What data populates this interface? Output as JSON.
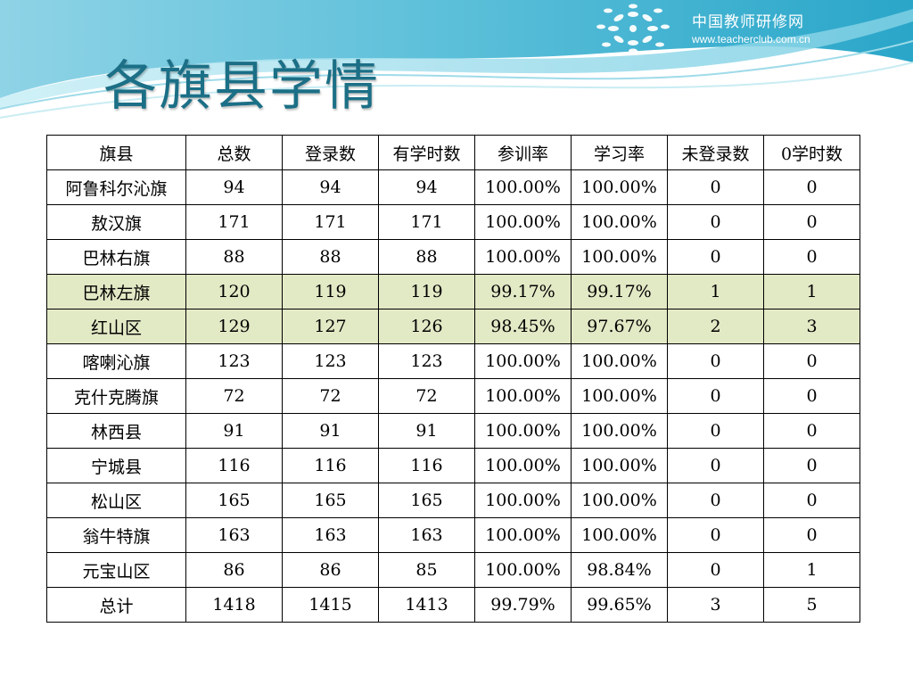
{
  "brand": {
    "name": "中国教师研修网",
    "url": "www.teacherclub.com.cn"
  },
  "title": "各旗县学情",
  "table": {
    "headers": [
      "旗县",
      "总数",
      "登录数",
      "有学时数",
      "参训率",
      "学习率",
      "未登录数",
      "0学时数"
    ],
    "rows": [
      {
        "cells": [
          "阿鲁科尔沁旗",
          "94",
          "94",
          "94",
          "100.00%",
          "100.00%",
          "0",
          "0"
        ],
        "highlight": false
      },
      {
        "cells": [
          "敖汉旗",
          "171",
          "171",
          "171",
          "100.00%",
          "100.00%",
          "0",
          "0"
        ],
        "highlight": false
      },
      {
        "cells": [
          "巴林右旗",
          "88",
          "88",
          "88",
          "100.00%",
          "100.00%",
          "0",
          "0"
        ],
        "highlight": false
      },
      {
        "cells": [
          "巴林左旗",
          "120",
          "119",
          "119",
          "99.17%",
          "99.17%",
          "1",
          "1"
        ],
        "highlight": true
      },
      {
        "cells": [
          "红山区",
          "129",
          "127",
          "126",
          "98.45%",
          "97.67%",
          "2",
          "3"
        ],
        "highlight": true
      },
      {
        "cells": [
          "喀喇沁旗",
          "123",
          "123",
          "123",
          "100.00%",
          "100.00%",
          "0",
          "0"
        ],
        "highlight": false
      },
      {
        "cells": [
          "克什克腾旗",
          "72",
          "72",
          "72",
          "100.00%",
          "100.00%",
          "0",
          "0"
        ],
        "highlight": false
      },
      {
        "cells": [
          "林西县",
          "91",
          "91",
          "91",
          "100.00%",
          "100.00%",
          "0",
          "0"
        ],
        "highlight": false
      },
      {
        "cells": [
          "宁城县",
          "116",
          "116",
          "116",
          "100.00%",
          "100.00%",
          "0",
          "0"
        ],
        "highlight": false
      },
      {
        "cells": [
          "松山区",
          "165",
          "165",
          "165",
          "100.00%",
          "100.00%",
          "0",
          "0"
        ],
        "highlight": false
      },
      {
        "cells": [
          "翁牛特旗",
          "163",
          "163",
          "163",
          "100.00%",
          "100.00%",
          "0",
          "0"
        ],
        "highlight": false
      },
      {
        "cells": [
          "元宝山区",
          "86",
          "86",
          "85",
          "100.00%",
          "98.84%",
          "0",
          "1"
        ],
        "highlight": false
      },
      {
        "cells": [
          "总计",
          "1418",
          "1415",
          "1413",
          "99.79%",
          "99.65%",
          "3",
          "5"
        ],
        "highlight": false
      }
    ]
  },
  "colors": {
    "title": "#1b6f86",
    "highlight_row": "#e2e9c5",
    "header_wave": "#6fc7dd"
  }
}
